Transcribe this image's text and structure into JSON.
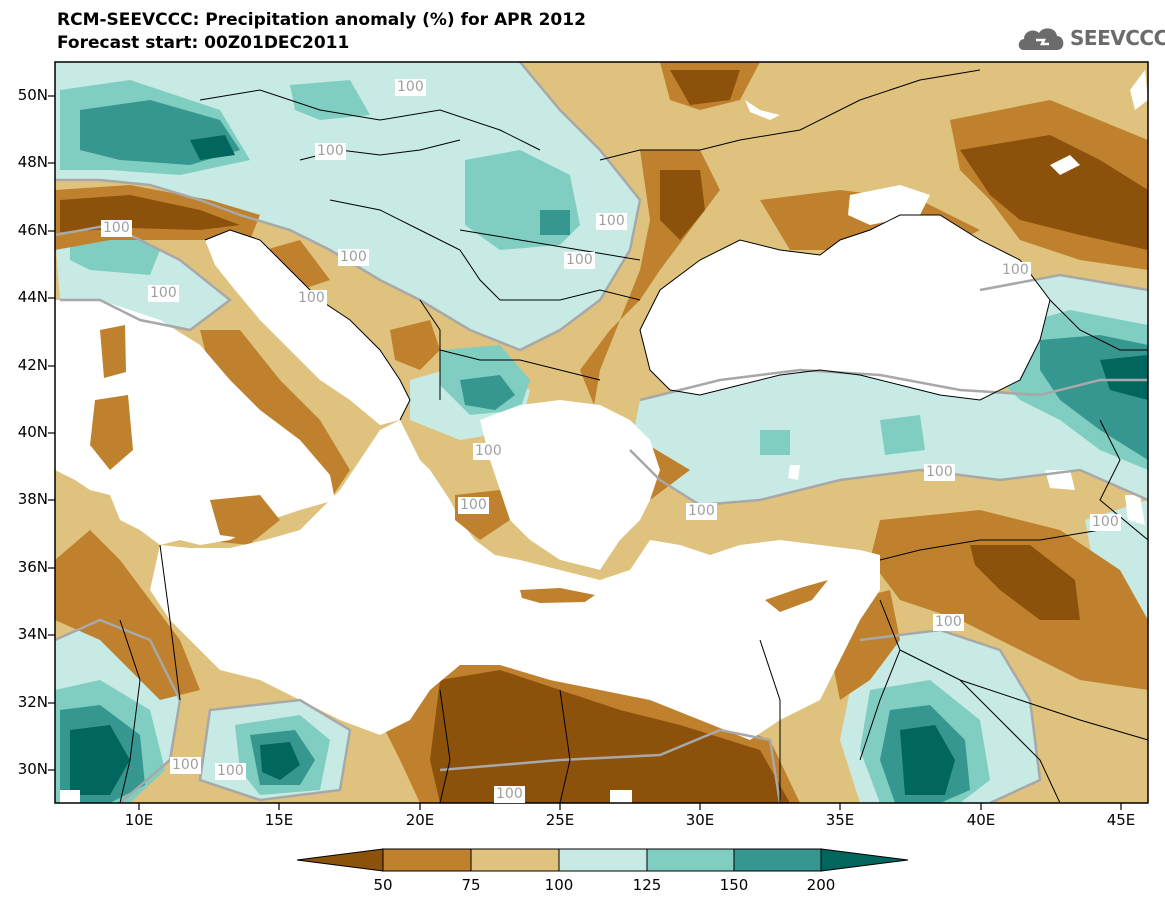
{
  "header": {
    "title": "RCM-SEEVCCC: Precipitation anomaly (%) for APR 2012",
    "subtitle": "Forecast start: 00Z01DEC2011",
    "logo_text": "SEEVCCC"
  },
  "axes": {
    "lat_labels": [
      "50N",
      "48N",
      "46N",
      "44N",
      "42N",
      "40N",
      "38N",
      "36N",
      "34N",
      "32N",
      "30N"
    ],
    "lon_labels": [
      "10E",
      "15E",
      "20E",
      "25E",
      "30E",
      "35E",
      "40E",
      "45E"
    ]
  },
  "contour_label": "100",
  "colors": {
    "sea": "#ffffff",
    "lt50": "#8c510a",
    "c50_75": "#bf812d",
    "c75_100": "#dfc27d",
    "c100_125": "#c7eae5",
    "c125_150": "#80cdc1",
    "c150_200": "#35978f",
    "gt200": "#01665e",
    "contour": "#a8a8a8",
    "border": "#000000"
  },
  "colorbar": {
    "labels": [
      "50",
      "75",
      "100",
      "125",
      "150",
      "200"
    ]
  }
}
